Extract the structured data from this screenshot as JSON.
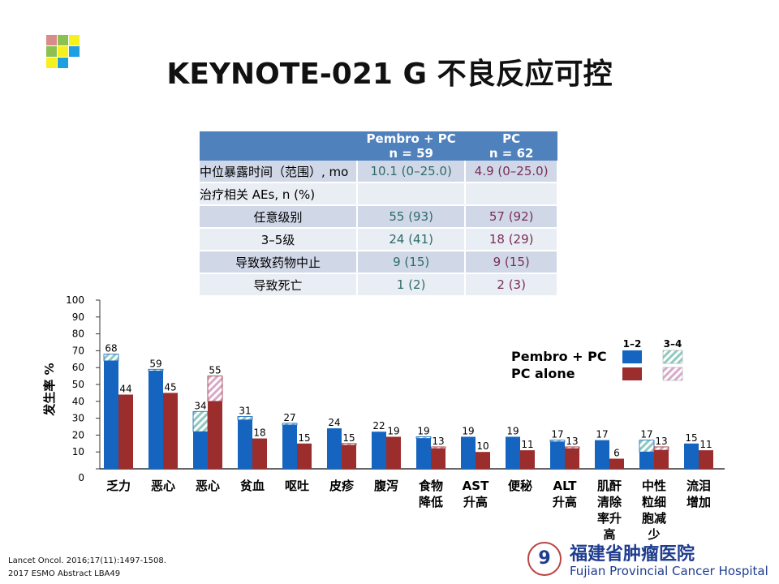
{
  "title": "KEYNOTE-021 G 不良反应可控",
  "table": {
    "headers": [
      [
        "",
        ""
      ],
      [
        "Pembro + PC",
        "n = 59"
      ],
      [
        "PC",
        "n = 62"
      ]
    ],
    "rows": [
      [
        "中位暴露时间（范围）, mo",
        "10.1 (0–25.0)",
        "4.9 (0–25.0)"
      ],
      [
        "治疗相关 AEs, n (%)",
        "",
        ""
      ],
      [
        "任意级别",
        "55 (93)",
        "57 (92)"
      ],
      [
        "3–5级",
        "24 (41)",
        "18 (29)"
      ],
      [
        "导致致药物中止",
        "9 (15)",
        "9 (15)"
      ],
      [
        "导致死亡",
        "1 (2)",
        "2 (3)"
      ]
    ]
  },
  "chart_data": {
    "type": "bar",
    "ylabel": "发生率 %",
    "ylim": [
      0,
      100
    ],
    "yticks": [
      0,
      10,
      20,
      30,
      40,
      50,
      60,
      70,
      80,
      90,
      100
    ],
    "categories": [
      "乏力",
      "恶心",
      "恶心",
      "贫血",
      "呕吐",
      "皮疹",
      "腹泻",
      "食物\n降低",
      "AST\n升高",
      "便秘",
      "ALT\n升高",
      "肌酐\n清除\n率升\n高",
      "中性\n粒细\n胞减\n少",
      "流泪\n增加"
    ],
    "legend": {
      "grade_labels": [
        "1–2",
        "3–4"
      ],
      "position": "top-right"
    },
    "series": [
      {
        "name": "Pembro + PC",
        "color": "#1565c0",
        "hatch_color": "#8fc9c0",
        "totals": [
          68,
          59,
          34,
          31,
          27,
          24,
          22,
          19,
          19,
          19,
          17,
          17,
          17,
          15
        ],
        "grade12": [
          64,
          58,
          22,
          29,
          26,
          24,
          22,
          18,
          19,
          19,
          16,
          17,
          10,
          15
        ]
      },
      {
        "name": "PC alone",
        "color": "#9b2d2d",
        "hatch_color": "#d8a9c8",
        "totals": [
          44,
          45,
          55,
          18,
          15,
          15,
          19,
          13,
          10,
          11,
          13,
          6,
          13,
          11
        ],
        "grade12": [
          44,
          45,
          40,
          18,
          15,
          14,
          19,
          12,
          10,
          11,
          12,
          6,
          11,
          11
        ]
      }
    ]
  },
  "references": [
    "Lancet Oncol. 2016;17(11):1497-1508.",
    "2017 ESMO Abstract LBA49"
  ],
  "hospital": {
    "name_cn": "福建省肿瘤医院",
    "name_en": "Fujian Provincial Cancer Hospital"
  },
  "logo_colors": [
    "#d98a8a",
    "#8cc152",
    "#f5f01e",
    "#8cc152",
    "#f5f01e",
    "#1e9fe0",
    "#f5f01e",
    "#1e9fe0"
  ]
}
